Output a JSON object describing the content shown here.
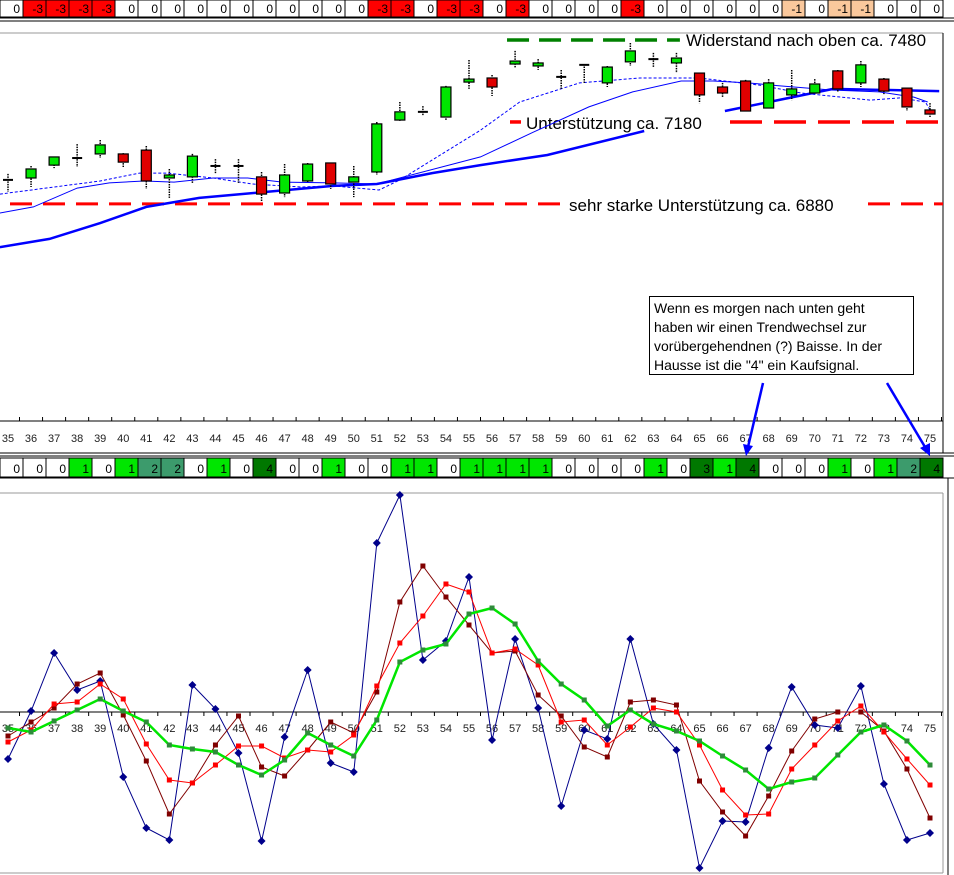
{
  "colors": {
    "signal_-3": "#ff0000",
    "signal_-1": "#fac89c",
    "signal_0": "#ffffff",
    "signal_1": "#00e600",
    "signal_2": "#3c9b6c",
    "signal_3": "#007800",
    "signal_4": "#007800",
    "candle_up": "#00e600",
    "candle_down": "#e00000",
    "ma": "#0000ff",
    "support": "#ff0000",
    "resistance": "#008000",
    "osc_blue": "#00008b",
    "osc_darkred": "#800000",
    "osc_red": "#ff0000",
    "osc_green": "#00e600"
  },
  "top_signals": [
    0,
    -3,
    -3,
    -3,
    -3,
    0,
    0,
    0,
    0,
    0,
    0,
    0,
    0,
    0,
    0,
    0,
    -3,
    -3,
    0,
    -3,
    -3,
    0,
    -3,
    0,
    0,
    0,
    0,
    -3,
    0,
    0,
    0,
    0,
    0,
    0,
    -1,
    0,
    -1,
    -1,
    0,
    0,
    0
  ],
  "mid_signals": [
    0,
    0,
    0,
    1,
    0,
    1,
    2,
    2,
    0,
    1,
    0,
    4,
    0,
    0,
    1,
    0,
    0,
    1,
    1,
    0,
    1,
    1,
    1,
    1,
    0,
    0,
    0,
    0,
    1,
    0,
    3,
    1,
    4,
    0,
    0,
    0,
    1,
    0,
    1,
    2,
    4
  ],
  "annotation": {
    "lines": [
      "Wenn es morgen nach unten geht",
      "haben wir einen Trendwechsel zur",
      "vorübergehendnen (?) Baisse. In der",
      "Hausse ist die  \"4\" ein Kaufsignal."
    ]
  },
  "chart_data": [
    {
      "type": "candlestick",
      "x_labels": [
        35,
        36,
        37,
        38,
        39,
        40,
        41,
        42,
        43,
        44,
        45,
        46,
        47,
        48,
        49,
        50,
        51,
        52,
        53,
        54,
        55,
        56,
        57,
        58,
        59,
        60,
        61,
        62,
        63,
        64,
        65,
        66,
        67,
        68,
        69,
        70,
        71,
        72,
        73,
        74,
        75
      ],
      "ohlc": [
        [
          6968,
          6990,
          6924,
          6968
        ],
        [
          6975,
          7019,
          6942,
          7008
        ],
        [
          7022,
          7052,
          7011,
          7052
        ],
        [
          7048,
          7099,
          7015,
          7048
        ],
        [
          7063,
          7114,
          7048,
          7096
        ],
        [
          7063,
          7066,
          7015,
          7033
        ],
        [
          7077,
          7092,
          6935,
          6964
        ],
        [
          6975,
          7008,
          6902,
          6986
        ],
        [
          6979,
          7063,
          6957,
          7055
        ],
        [
          7019,
          7044,
          6990,
          7019
        ],
        [
          7019,
          7044,
          6957,
          7019
        ],
        [
          6979,
          6997,
          6887,
          6916
        ],
        [
          6920,
          7026,
          6905,
          6986
        ],
        [
          6964,
          7030,
          6960,
          7026
        ],
        [
          7030,
          7030,
          6935,
          6953
        ],
        [
          6960,
          7019,
          6905,
          6979
        ],
        [
          6997,
          7180,
          6986,
          7173
        ],
        [
          7187,
          7253,
          7184,
          7217
        ],
        [
          7217,
          7238,
          7202,
          7217
        ],
        [
          7198,
          7312,
          7187,
          7308
        ],
        [
          7326,
          7407,
          7301,
          7337
        ],
        [
          7341,
          7352,
          7275,
          7308
        ],
        [
          7392,
          7440,
          7378,
          7403
        ],
        [
          7385,
          7410,
          7370,
          7396
        ],
        [
          7345,
          7370,
          7301,
          7345
        ],
        [
          7389,
          7392,
          7323,
          7389
        ],
        [
          7323,
          7385,
          7308,
          7381
        ],
        [
          7400,
          7469,
          7385,
          7440
        ],
        [
          7410,
          7433,
          7381,
          7410
        ],
        [
          7396,
          7433,
          7359,
          7414
        ],
        [
          7359,
          7359,
          7249,
          7279
        ],
        [
          7308,
          7323,
          7268,
          7286
        ],
        [
          7330,
          7334,
          7217,
          7220
        ],
        [
          7231,
          7337,
          7227,
          7323
        ],
        [
          7279,
          7370,
          7260,
          7301
        ],
        [
          7286,
          7337,
          7282,
          7319
        ],
        [
          7367,
          7370,
          7290,
          7301
        ],
        [
          7323,
          7403,
          7308,
          7389
        ],
        [
          7337,
          7341,
          7282,
          7293
        ],
        [
          7304,
          7304,
          7220,
          7235
        ],
        [
          7224,
          7249,
          7198,
          7209
        ]
      ],
      "moving_averages": [
        {
          "style": "dashed-thin",
          "points": [
            [
              34.65,
              6916
            ],
            [
              39,
              6964
            ],
            [
              40.7,
              6993
            ],
            [
              41.9,
              6993
            ],
            [
              43.9,
              6975
            ],
            [
              45.6,
              6953
            ],
            [
              47.7,
              6942
            ],
            [
              49.1,
              6946
            ],
            [
              51.1,
              6931
            ],
            [
              52,
              6968
            ],
            [
              55.5,
              7150
            ],
            [
              57.2,
              7253
            ],
            [
              59.8,
              7323
            ],
            [
              62.4,
              7341
            ],
            [
              65,
              7341
            ],
            [
              67.6,
              7315
            ],
            [
              69.4,
              7286
            ],
            [
              72.4,
              7260
            ],
            [
              73.7,
              7268
            ],
            [
              74.8,
              7253
            ],
            [
              75,
              7224
            ]
          ]
        },
        {
          "style": "solid-thin",
          "points": [
            [
              34.65,
              6847
            ],
            [
              36.1,
              6869
            ],
            [
              38,
              6938
            ],
            [
              39.4,
              6957
            ],
            [
              40.9,
              6964
            ],
            [
              42.2,
              6960
            ],
            [
              43.9,
              6975
            ],
            [
              45.4,
              6975
            ],
            [
              46.9,
              6960
            ],
            [
              49.1,
              6957
            ],
            [
              51,
              6953
            ],
            [
              55.5,
              7052
            ],
            [
              57.8,
              7143
            ],
            [
              60.2,
              7235
            ],
            [
              62.1,
              7290
            ],
            [
              64.2,
              7330
            ],
            [
              65.6,
              7330
            ],
            [
              67.1,
              7323
            ],
            [
              68.5,
              7312
            ],
            [
              70.7,
              7297
            ],
            [
              72.8,
              7290
            ],
            [
              74.3,
              7271
            ],
            [
              74.9,
              7253
            ]
          ]
        },
        {
          "style": "solid-thick",
          "points": [
            [
              34.65,
              6722
            ],
            [
              36.8,
              6752
            ],
            [
              39,
              6810
            ],
            [
              41,
              6869
            ],
            [
              43.3,
              6902
            ],
            [
              46.2,
              6924
            ],
            [
              49.1,
              6946
            ],
            [
              51,
              6953
            ],
            [
              53.4,
              6993
            ],
            [
              55.5,
              7022
            ],
            [
              58.4,
              7059
            ],
            [
              62.6,
              7147
            ]
          ]
        }
      ],
      "trendlines": [
        {
          "points": [
            [
              66.1,
              7220
            ],
            [
              70.8,
              7301
            ]
          ]
        },
        {
          "points": [
            [
              70.8,
              7301
            ],
            [
              75.4,
              7293
            ]
          ]
        }
      ],
      "levels": [
        {
          "value": 7480,
          "kind": "resistance",
          "label": "Widerstand nach oben ca. 7480"
        },
        {
          "value": 7180,
          "kind": "support",
          "label": "Unterstützung ca. 7180"
        },
        {
          "value": 6880,
          "kind": "support",
          "label": "sehr starke Unterstützung ca. 6880"
        }
      ]
    },
    {
      "type": "line",
      "x_labels": [
        35,
        36,
        37,
        38,
        39,
        40,
        41,
        42,
        43,
        44,
        45,
        46,
        47,
        48,
        49,
        50,
        51,
        52,
        53,
        54,
        55,
        56,
        57,
        58,
        59,
        60,
        61,
        62,
        63,
        64,
        65,
        66,
        67,
        68,
        69,
        70,
        71,
        72,
        73,
        74,
        75
      ],
      "zero_line": true,
      "series": [
        {
          "color": "osc_blue",
          "marker": "diamond",
          "values": [
            -4.7,
            0.1,
            5.9,
            2.2,
            3.1,
            -6.5,
            -11.6,
            -12.8,
            2.7,
            0.3,
            -4.1,
            -12.9,
            -2.5,
            4.2,
            -5.1,
            -6.0,
            16.9,
            21.7,
            5.2,
            7.1,
            13.5,
            -2.8,
            7.3,
            0.4,
            -9.4,
            -1.8,
            -2.7,
            7.3,
            -1.2,
            -3.8,
            -15.6,
            -10.9,
            -11.0,
            -3.6,
            2.5,
            -1.3,
            -1.6,
            2.6,
            -7.2,
            -12.8,
            -12.1
          ]
        },
        {
          "color": "osc_darkred",
          "marker": "square",
          "values": [
            -2.4,
            -1.0,
            0.4,
            2.8,
            3.9,
            -0.3,
            -4.9,
            -10.2,
            -7.1,
            -3.3,
            -0.4,
            -5.5,
            -6.4,
            -3.8,
            -1.0,
            -2.1,
            2.0,
            11.0,
            14.6,
            11.5,
            8.7,
            5.9,
            6.1,
            1.7,
            -0.4,
            -3.5,
            -4.5,
            1.0,
            1.2,
            0.7,
            -6.9,
            -10.0,
            -12.4,
            -8.4,
            -3.9,
            -0.7,
            0,
            0,
            -1.9,
            -5.7,
            -10.6
          ]
        },
        {
          "color": "osc_red",
          "marker": "square",
          "values": [
            -3.0,
            -1.8,
            0.8,
            1.0,
            2.8,
            1.3,
            -3.2,
            -6.8,
            -7.1,
            -5.3,
            -3.4,
            -3.4,
            -4.6,
            -3.8,
            -4.0,
            -2.3,
            2.6,
            6.9,
            9.6,
            12.8,
            12.0,
            5.9,
            6.3,
            4.7,
            -1.0,
            -0.8,
            -3.3,
            -1.5,
            0.4,
            0,
            -3.3,
            -7.8,
            -10.3,
            -10.2,
            -5.7,
            -3.3,
            -0.9,
            0.6,
            -2.0,
            -4.7,
            -7.3
          ]
        },
        {
          "color": "osc_green",
          "marker": "square",
          "values": [
            -1.6,
            -2.0,
            -0.9,
            0.2,
            1.3,
            0.1,
            -1.0,
            -3.3,
            -3.7,
            -4.0,
            -5.3,
            -6.3,
            -4.8,
            -2.1,
            -3.3,
            -4.4,
            -0.8,
            5.0,
            6.2,
            6.8,
            9.8,
            10.4,
            8.8,
            5.1,
            2.8,
            1.2,
            -1.4,
            0.2,
            -1.2,
            -1.9,
            -2.9,
            -4.4,
            -5.8,
            -7.7,
            -7.0,
            -6.6,
            -4.3,
            -2.0,
            -1.3,
            -2.9,
            -5.3
          ]
        }
      ]
    }
  ]
}
